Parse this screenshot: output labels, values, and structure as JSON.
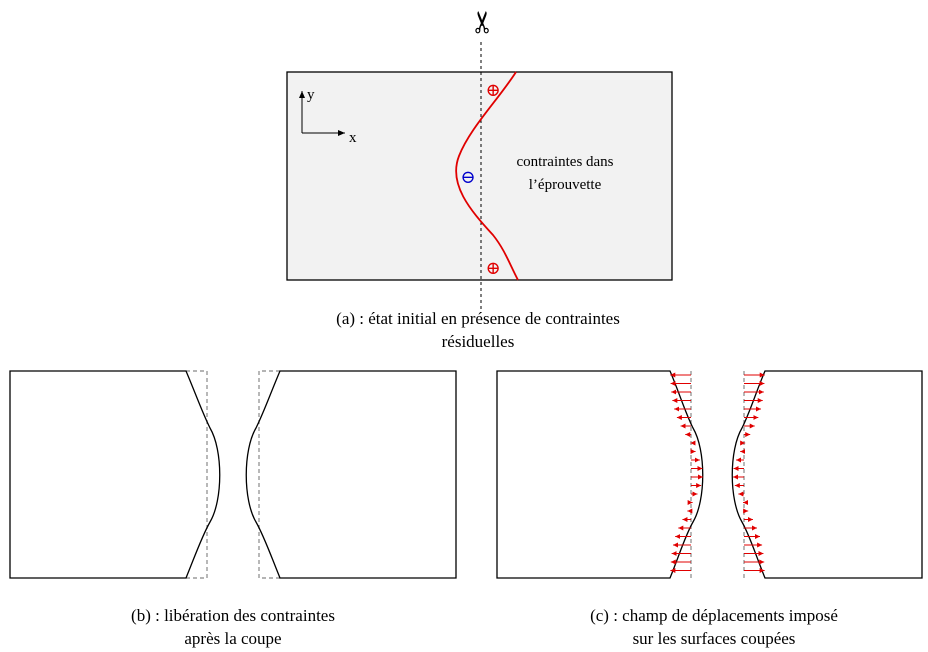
{
  "panel_a": {
    "caption_line1": "(a) : état initial en présence de contraintes",
    "caption_line2": "résiduelles",
    "stress_label_line1": "contraintes dans",
    "stress_label_line2": "l’éprouvette",
    "axis_x": "x",
    "axis_y": "y",
    "sign_plus": "⊕",
    "sign_minus": "⊖",
    "scissors_icon": "✂"
  },
  "panel_b": {
    "caption_line1": "(b) : libération des contraintes",
    "caption_line2": "après la coupe"
  },
  "panel_c": {
    "caption_line1": "(c) : champ de déplacements imposé",
    "caption_line2": "sur les surfaces coupées"
  },
  "colors": {
    "stress_curve": "#e00000",
    "arrows": "#e00000",
    "minus_sign": "#0000cc",
    "plus_sign": "#e00000",
    "specimen_fill": "#f2f2f2",
    "dashed_outline": "#888888"
  }
}
